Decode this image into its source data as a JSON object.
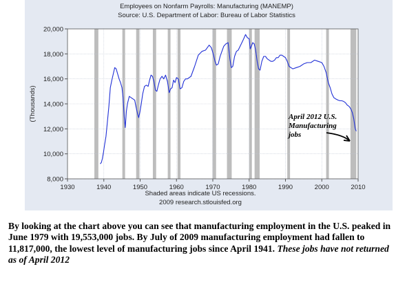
{
  "chart_data": {
    "type": "line",
    "title": "Employees on Nonfarm Payrolls: Manufacturing (MANEMP)",
    "subtitle": "Source: U.S. Department of Labor: Bureau of Labor Statistics",
    "xlabel": "",
    "ylabel": "(Thousands)",
    "xlim": [
      1930,
      2010
    ],
    "ylim": [
      8000,
      20000
    ],
    "x_ticks": [
      1930,
      1940,
      1950,
      1960,
      1970,
      1980,
      1990,
      2000,
      2010
    ],
    "y_ticks": [
      8000,
      10000,
      12000,
      14000,
      16000,
      18000,
      20000
    ],
    "x_tick_labels": [
      "1930",
      "1940",
      "1950",
      "1960",
      "1970",
      "1980",
      "1990",
      "2000",
      "2010"
    ],
    "y_tick_labels": [
      "8,000",
      "10,000",
      "12,000",
      "14,000",
      "16,000",
      "18,000",
      "20,000"
    ],
    "grid": true,
    "line_color": "#1f2fd6",
    "recession_color": "#bdbdbd",
    "recessions": [
      [
        1937.4,
        1938.5
      ],
      [
        1945.1,
        1945.8
      ],
      [
        1948.9,
        1949.8
      ],
      [
        1953.5,
        1954.4
      ],
      [
        1957.6,
        1958.3
      ],
      [
        1960.3,
        1961.1
      ],
      [
        1969.9,
        1970.9
      ],
      [
        1973.9,
        1975.2
      ],
      [
        1980.0,
        1980.6
      ],
      [
        1981.5,
        1982.9
      ],
      [
        1990.5,
        1991.2
      ],
      [
        2001.2,
        2001.9
      ],
      [
        2007.9,
        2009.5
      ]
    ],
    "series": [
      {
        "x": [
          1939.0,
          1939.3,
          1939.6,
          1939.9,
          1940.2,
          1940.6,
          1941.0,
          1941.4,
          1941.8,
          1942.2,
          1942.6,
          1943.0,
          1943.4,
          1943.8,
          1944.2,
          1944.6,
          1945.0,
          1945.3,
          1945.6,
          1945.9,
          1946.2,
          1946.5,
          1947.0,
          1947.5,
          1948.0,
          1948.5,
          1948.9,
          1949.3,
          1949.6,
          1949.9,
          1950.3,
          1950.7,
          1951.2,
          1951.7,
          1952.2,
          1952.6,
          1953.0,
          1953.4,
          1953.8,
          1954.2,
          1954.6,
          1955.0,
          1955.5,
          1956.0,
          1956.5,
          1957.0,
          1957.5,
          1958.0,
          1958.4,
          1958.8,
          1959.2,
          1959.6,
          1960.0,
          1960.5,
          1961.0,
          1961.5,
          1962.0,
          1962.5,
          1963.0,
          1964.0,
          1965.0,
          1966.0,
          1967.0,
          1968.0,
          1969.0,
          1969.6,
          1970.2,
          1970.6,
          1971.0,
          1971.5,
          1972.0,
          1972.5,
          1973.0,
          1973.6,
          1974.2,
          1974.7,
          1975.1,
          1975.5,
          1976.0,
          1976.5,
          1977.0,
          1977.5,
          1978.0,
          1978.5,
          1979.0,
          1979.5,
          1980.0,
          1980.3,
          1980.6,
          1981.0,
          1981.4,
          1981.8,
          1982.2,
          1982.6,
          1983.0,
          1983.5,
          1984.0,
          1984.5,
          1985.0,
          1985.5,
          1986.0,
          1986.5,
          1987.0,
          1987.5,
          1988.0,
          1988.5,
          1989.0,
          1989.5,
          1990.0,
          1990.5,
          1991.0,
          1991.5,
          1992.0,
          1993.0,
          1994.0,
          1995.0,
          1996.0,
          1997.0,
          1998.0,
          1999.0,
          2000.0,
          2000.6,
          2001.2,
          2001.8,
          2002.3,
          2002.8,
          2003.3,
          2003.8,
          2004.5,
          2005.0,
          2005.5,
          2006.0,
          2006.5,
          2007.0,
          2007.5,
          2008.0,
          2008.4,
          2008.8,
          2009.2,
          2009.5
        ],
        "values": [
          9200,
          9300,
          9600,
          10100,
          10700,
          11400,
          12600,
          13800,
          15300,
          15900,
          16400,
          16900,
          16800,
          16400,
          16000,
          15700,
          15300,
          14500,
          13000,
          12100,
          13400,
          14000,
          14600,
          14500,
          14400,
          14300,
          13700,
          13200,
          12900,
          13300,
          14000,
          14800,
          15400,
          15500,
          15400,
          15900,
          16300,
          16200,
          15800,
          15100,
          15000,
          15500,
          16000,
          16200,
          16000,
          16300,
          15800,
          14900,
          15200,
          15300,
          15900,
          15700,
          16100,
          16000,
          15200,
          15300,
          15800,
          16000,
          16000,
          16200,
          17000,
          17900,
          18200,
          18300,
          18700,
          18500,
          17900,
          17400,
          17100,
          17200,
          17800,
          18200,
          18600,
          18800,
          18900,
          17600,
          16900,
          17000,
          17800,
          18200,
          18300,
          18600,
          18900,
          19200,
          19550,
          19300,
          19200,
          18400,
          18600,
          18900,
          18800,
          18300,
          17400,
          16800,
          16700,
          17400,
          17800,
          17800,
          17600,
          17500,
          17400,
          17400,
          17500,
          17700,
          17700,
          17900,
          17900,
          17800,
          17700,
          17400,
          17000,
          16900,
          16800,
          16900,
          17000,
          17200,
          17300,
          17300,
          17500,
          17400,
          17300,
          17000,
          16500,
          15700,
          15300,
          14800,
          14500,
          14400,
          14300,
          14250,
          14250,
          14200,
          14100,
          13900,
          13800,
          13600,
          13300,
          12800,
          12000,
          11817
        ]
      }
    ],
    "notes": [
      "Shaded areas indicate US recessions.",
      "2009 research.stlouisfed.org"
    ],
    "annotation": {
      "lines": [
        "April 2012 U.S.",
        "Manufacturing",
        "jobs"
      ]
    }
  },
  "caption": {
    "text": "By looking at the chart above you can see that manufacturing employment in the U.S. peaked in June 1979 with 19,553,000 jobs.  By July of 2009 manufacturing employment had fallen to 11,817,000, the lowest level of manufacturing jobs since April 1941.   ",
    "emphasis": "These jobs have not returned as of April 2012"
  }
}
